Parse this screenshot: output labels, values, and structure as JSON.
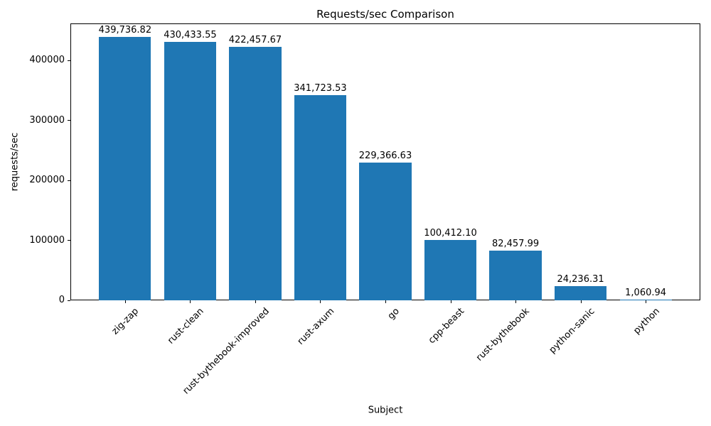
{
  "chart_data": {
    "type": "bar",
    "title": "Requests/sec Comparison",
    "xlabel": "Subject",
    "ylabel": "requests/sec",
    "categories": [
      "zig-zap",
      "rust-clean",
      "rust-bythebook-improved",
      "rust-axum",
      "go",
      "cpp-beast",
      "rust-bythebook",
      "python-sanic",
      "python"
    ],
    "values": [
      439736.82,
      430433.55,
      422457.67,
      341723.53,
      229366.63,
      100412.1,
      82457.99,
      24236.31,
      1060.94
    ],
    "value_labels": [
      "439,736.82",
      "430,433.55",
      "422,457.67",
      "341,723.53",
      "229,366.63",
      "100,412.10",
      "82,457.99",
      "24,236.31",
      "1,060.94"
    ],
    "ytick_values": [
      0,
      100000,
      200000,
      300000,
      400000
    ],
    "ytick_labels": [
      "0",
      "100000",
      "200000",
      "300000",
      "400000"
    ],
    "ylim": [
      0,
      461724
    ],
    "bar_color": "#1f77b4",
    "grid": false,
    "legend": null,
    "xtick_rotation_deg": 45
  }
}
